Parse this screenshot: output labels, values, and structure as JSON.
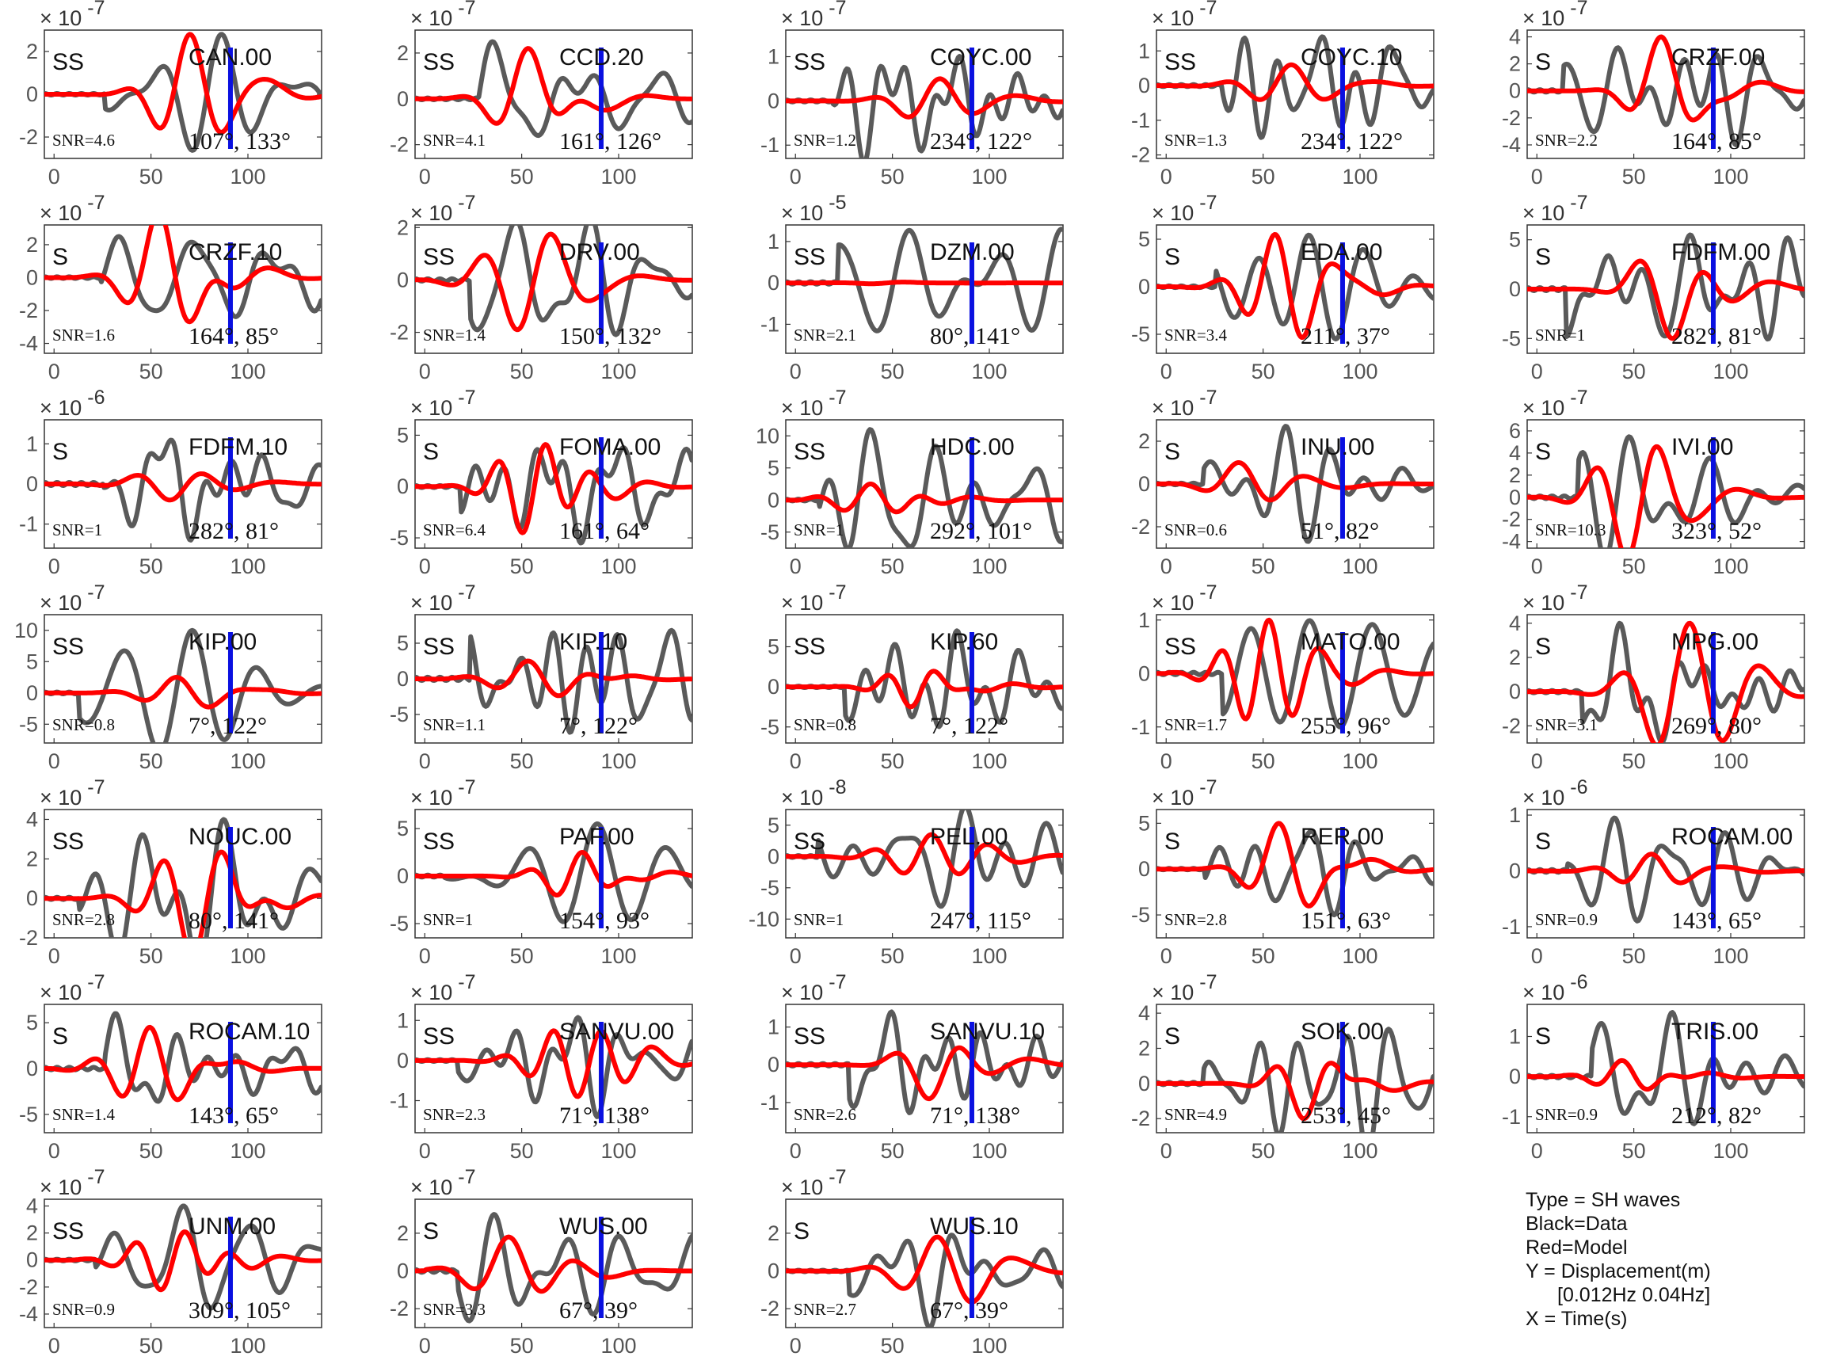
{
  "legend": {
    "type_line": "Type = SH waves",
    "black_line": "Black=Data",
    "red_line": "Red=Model",
    "y_line": "Y = Displacement(m)",
    "band_line": "[0.012Hz 0.04Hz]",
    "x_line": "X = Time(s)"
  },
  "colors": {
    "data": "#5a5a5a",
    "model": "#ff0000",
    "marker": "#0a10e0",
    "axis": "#333333"
  },
  "chart_data": {
    "type": "line",
    "x_ticks": [
      0,
      50,
      100
    ],
    "xlim": [
      -5,
      138
    ],
    "marker_time": 91,
    "panels": [
      {
        "station": "CAN.00",
        "phase": "SS",
        "snr": "SNR=4.6",
        "angles": "107°, 133°",
        "exponent": "-7",
        "yticks": [
          -2,
          0,
          2
        ],
        "ylim": [
          -3,
          3
        ],
        "amp_data": 2.8,
        "amp_model": 2.8
      },
      {
        "station": "CCD.20",
        "phase": "SS",
        "snr": "SNR=4.1",
        "angles": "161°, 126°",
        "exponent": "-7",
        "yticks": [
          -2,
          0,
          2
        ],
        "ylim": [
          -2.6,
          3
        ],
        "amp_data": 2.5,
        "amp_model": 2.2
      },
      {
        "station": "COYC.00",
        "phase": "SS",
        "snr": "SNR=1.2",
        "angles": "234°, 122°",
        "exponent": "-7",
        "yticks": [
          -1,
          0,
          1
        ],
        "ylim": [
          -1.3,
          1.6
        ],
        "amp_data": 1.4,
        "amp_model": 0.5
      },
      {
        "station": "COYC.10",
        "phase": "SS",
        "snr": "SNR=1.3",
        "angles": "234°, 122°",
        "exponent": "-7",
        "yticks": [
          -2,
          -1,
          0,
          1
        ],
        "ylim": [
          -2.1,
          1.6
        ],
        "amp_data": 1.5,
        "amp_model": 0.6
      },
      {
        "station": "CRZF.00",
        "phase": "S",
        "snr": "SNR=2.2",
        "angles": "164°, 85°",
        "exponent": "-7",
        "yticks": [
          -4,
          -2,
          0,
          2,
          4
        ],
        "ylim": [
          -5,
          4.5
        ],
        "amp_data": 4,
        "amp_model": 4
      },
      {
        "station": "CRZF.10",
        "phase": "S",
        "snr": "SNR=1.6",
        "angles": "164°, 85°",
        "exponent": "-7",
        "yticks": [
          -4,
          -2,
          0,
          2
        ],
        "ylim": [
          -4.6,
          3.2
        ],
        "amp_data": 2.5,
        "amp_model": 4
      },
      {
        "station": "DRV.00",
        "phase": "SS",
        "snr": "SNR=1.4",
        "angles": "150°, 132°",
        "exponent": "-7",
        "yticks": [
          -2,
          0,
          2
        ],
        "ylim": [
          -2.8,
          2.1
        ],
        "amp_data": 2.4,
        "amp_model": 1.9
      },
      {
        "station": "DZM.00",
        "phase": "SS",
        "snr": "SNR=2.1",
        "angles": "80°, 141°",
        "exponent": "-5",
        "yticks": [
          -1,
          0,
          1
        ],
        "ylim": [
          -1.7,
          1.4
        ],
        "amp_data": 1.3,
        "amp_model": 0.02
      },
      {
        "station": "EDA.00",
        "phase": "S",
        "snr": "SNR=3.4",
        "angles": "211°, 37°",
        "exponent": "-7",
        "yticks": [
          -5,
          0,
          5
        ],
        "ylim": [
          -7,
          6.5
        ],
        "amp_data": 5.5,
        "amp_model": 5.5
      },
      {
        "station": "FDFM.00",
        "phase": "S",
        "snr": "SNR=1",
        "angles": "282°, 81°",
        "exponent": "-7",
        "yticks": [
          -5,
          0,
          5
        ],
        "ylim": [
          -6.5,
          6.5
        ],
        "amp_data": 5.5,
        "amp_model": 5
      },
      {
        "station": "FDFM.10",
        "phase": "S",
        "snr": "SNR=1",
        "angles": "282°, 81°",
        "exponent": "-6",
        "yticks": [
          -1,
          0,
          1
        ],
        "ylim": [
          -1.6,
          1.6
        ],
        "amp_data": 1.4,
        "amp_model": 0.4
      },
      {
        "station": "FOMA.00",
        "phase": "S",
        "snr": "SNR=6.4",
        "angles": "161°, 64°",
        "exponent": "-7",
        "yticks": [
          -5,
          0,
          5
        ],
        "ylim": [
          -6,
          6.5
        ],
        "amp_data": 5.5,
        "amp_model": 4.5
      },
      {
        "station": "HDC.00",
        "phase": "SS",
        "snr": "SNR=1",
        "angles": "292°, 101°",
        "exponent": "-7",
        "yticks": [
          -5,
          0,
          5,
          10
        ],
        "ylim": [
          -7.5,
          12.5
        ],
        "amp_data": 11,
        "amp_model": 2.5
      },
      {
        "station": "INU.00",
        "phase": "S",
        "snr": "SNR=0.6",
        "angles": "51°, 82°",
        "exponent": "-7",
        "yticks": [
          -2,
          0,
          2
        ],
        "ylim": [
          -3,
          3
        ],
        "amp_data": 2.7,
        "amp_model": 1
      },
      {
        "station": "IVI.00",
        "phase": "S",
        "snr": "SNR=10.3",
        "angles": "323°, 52°",
        "exponent": "-7",
        "yticks": [
          -4,
          -2,
          0,
          2,
          4,
          6
        ],
        "ylim": [
          -4.6,
          7
        ],
        "amp_data": 5.5,
        "amp_model": 5.5
      },
      {
        "station": "KIP.00",
        "phase": "SS",
        "snr": "SNR=0.8",
        "angles": "7°, 122°",
        "exponent": "-7",
        "yticks": [
          -5,
          0,
          5,
          10
        ],
        "ylim": [
          -8,
          12.5
        ],
        "amp_data": 10,
        "amp_model": 2.5
      },
      {
        "station": "KIP.10",
        "phase": "SS",
        "snr": "SNR=1.1",
        "angles": "7°, 122°",
        "exponent": "-7",
        "yticks": [
          -5,
          0,
          5
        ],
        "ylim": [
          -9,
          9
        ],
        "amp_data": 7.5,
        "amp_model": 2.5
      },
      {
        "station": "KIP.60",
        "phase": "SS",
        "snr": "SNR=0.8",
        "angles": "7°, 122°",
        "exponent": "-7",
        "yticks": [
          -5,
          0,
          5
        ],
        "ylim": [
          -7,
          9
        ],
        "amp_data": 7,
        "amp_model": 2.5
      },
      {
        "station": "MATO.00",
        "phase": "SS",
        "snr": "SNR=1.7",
        "angles": "255°, 96°",
        "exponent": "-7",
        "yticks": [
          -1,
          0,
          1
        ],
        "ylim": [
          -1.3,
          1.1
        ],
        "amp_data": 1,
        "amp_model": 1
      },
      {
        "station": "MPG.00",
        "phase": "S",
        "snr": "SNR=3.1",
        "angles": "269°, 80°",
        "exponent": "-7",
        "yticks": [
          -2,
          0,
          2,
          4
        ],
        "ylim": [
          -3,
          4.5
        ],
        "amp_data": 4,
        "amp_model": 4
      },
      {
        "station": "NOUC.00",
        "phase": "SS",
        "snr": "SNR=2.8",
        "angles": "80°, 141°",
        "exponent": "-7",
        "yticks": [
          -2,
          0,
          2,
          4
        ],
        "ylim": [
          -2,
          4.5
        ],
        "amp_data": 4,
        "amp_model": 3
      },
      {
        "station": "PAF.00",
        "phase": "SS",
        "snr": "SNR=1",
        "angles": "154°, 93°",
        "exponent": "-7",
        "yticks": [
          -5,
          0,
          5
        ],
        "ylim": [
          -6.5,
          7
        ],
        "amp_data": 5.5,
        "amp_model": 2.5
      },
      {
        "station": "PEL.00",
        "phase": "SS",
        "snr": "SNR=1",
        "angles": "247°, 115°",
        "exponent": "-8",
        "yticks": [
          -10,
          -5,
          0,
          5
        ],
        "ylim": [
          -13,
          7.5
        ],
        "amp_data": 8,
        "amp_model": 3.5
      },
      {
        "station": "RER.00",
        "phase": "S",
        "snr": "SNR=2.8",
        "angles": "151°, 63°",
        "exponent": "-7",
        "yticks": [
          -5,
          0,
          5
        ],
        "ylim": [
          -7.5,
          6.5
        ],
        "amp_data": 5,
        "amp_model": 5
      },
      {
        "station": "ROCAM.00",
        "phase": "S",
        "snr": "SNR=0.9",
        "angles": "143°, 65°",
        "exponent": "-6",
        "yticks": [
          -1,
          0,
          1
        ],
        "ylim": [
          -1.2,
          1.1
        ],
        "amp_data": 0.95,
        "amp_model": 0.3
      },
      {
        "station": "ROCAM.10",
        "phase": "S",
        "snr": "SNR=1.4",
        "angles": "143°, 65°",
        "exponent": "-7",
        "yticks": [
          -5,
          0,
          5
        ],
        "ylim": [
          -7,
          7
        ],
        "amp_data": 6,
        "amp_model": 4.5
      },
      {
        "station": "SANVU.00",
        "phase": "SS",
        "snr": "SNR=2.3",
        "angles": "71°, 138°",
        "exponent": "-7",
        "yticks": [
          -1,
          0,
          1
        ],
        "ylim": [
          -1.8,
          1.4
        ],
        "amp_data": 1.4,
        "amp_model": 0.9
      },
      {
        "station": "SANVU.10",
        "phase": "SS",
        "snr": "SNR=2.6",
        "angles": "71°, 138°",
        "exponent": "-7",
        "yticks": [
          -1,
          0,
          1
        ],
        "ylim": [
          -1.8,
          1.6
        ],
        "amp_data": 1.4,
        "amp_model": 0.9
      },
      {
        "station": "SOK.00",
        "phase": "S",
        "snr": "SNR=4.9",
        "angles": "253°, 45°",
        "exponent": "-7",
        "yticks": [
          -2,
          0,
          2,
          4
        ],
        "ylim": [
          -2.8,
          4.5
        ],
        "amp_data": 4,
        "amp_model": 2
      },
      {
        "station": "TRIS.00",
        "phase": "S",
        "snr": "SNR=0.9",
        "angles": "212°, 82°",
        "exponent": "-6",
        "yticks": [
          -1,
          0,
          1
        ],
        "ylim": [
          -1.4,
          1.8
        ],
        "amp_data": 1.6,
        "amp_model": 0.4
      },
      {
        "station": "UNM.00",
        "phase": "SS",
        "snr": "SNR=0.9",
        "angles": "309°, 105°",
        "exponent": "-7",
        "yticks": [
          -4,
          -2,
          0,
          2,
          4
        ],
        "ylim": [
          -5,
          4.5
        ],
        "amp_data": 4,
        "amp_model": 2.2
      },
      {
        "station": "WUS.00",
        "phase": "S",
        "snr": "SNR=3.3",
        "angles": "67°, 39°",
        "exponent": "-7",
        "yticks": [
          -2,
          0,
          2
        ],
        "ylim": [
          -3,
          3.8
        ],
        "amp_data": 3,
        "amp_model": 1.8
      },
      {
        "station": "WUS.10",
        "phase": "S",
        "snr": "SNR=2.7",
        "angles": "67°, 39°",
        "exponent": "-7",
        "yticks": [
          -2,
          0,
          2
        ],
        "ylim": [
          -3,
          3.8
        ],
        "amp_data": 3,
        "amp_model": 1.8
      }
    ]
  }
}
